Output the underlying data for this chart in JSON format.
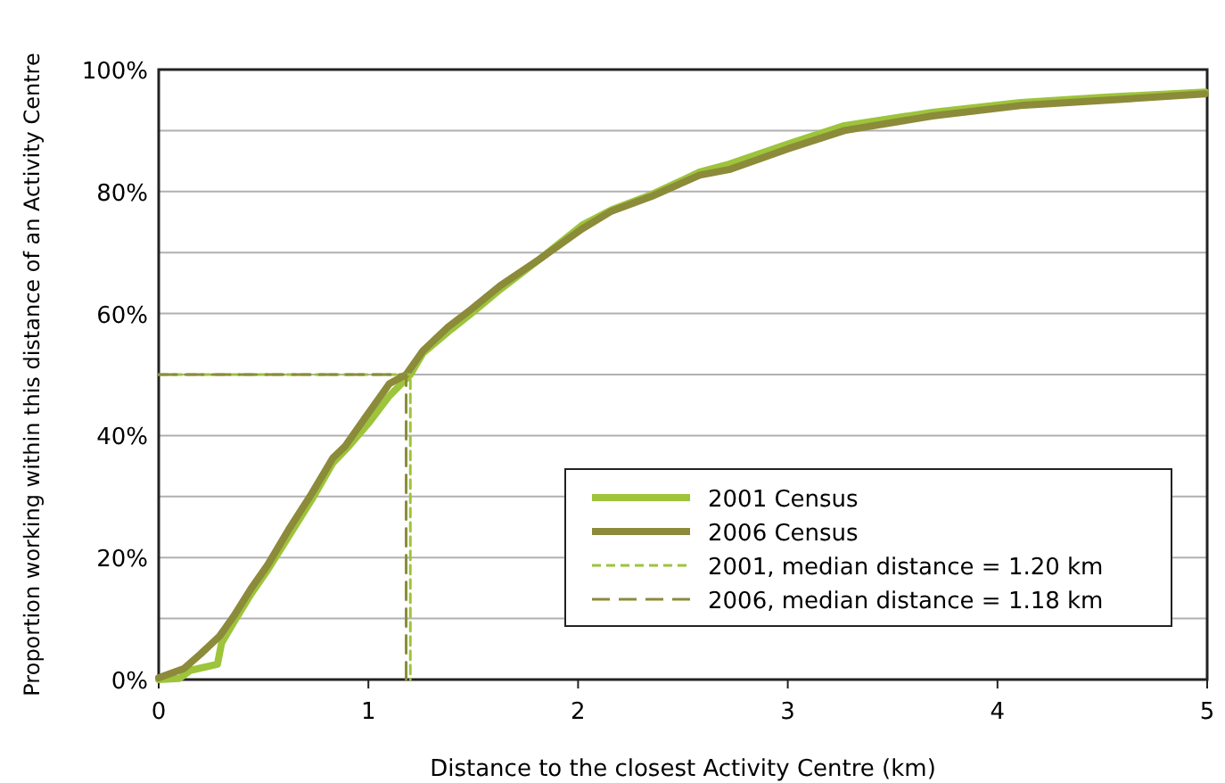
{
  "chart_data": {
    "type": "line",
    "xlabel": "Distance to the closest Activity Centre (km)",
    "ylabel": "Proportion working within this distance of an Activity Centre",
    "xlim": [
      0,
      5
    ],
    "xticks": [
      0,
      1,
      2,
      3,
      4,
      5
    ],
    "ylim": [
      0,
      100
    ],
    "yticks": [
      {
        "value": 0,
        "label": "0%"
      },
      {
        "value": 10,
        "label": null
      },
      {
        "value": 20,
        "label": "20%"
      },
      {
        "value": 30,
        "label": null
      },
      {
        "value": 40,
        "label": "40%"
      },
      {
        "value": 50,
        "label": null
      },
      {
        "value": 60,
        "label": "60%"
      },
      {
        "value": 70,
        "label": null
      },
      {
        "value": 80,
        "label": "80%"
      },
      {
        "value": 90,
        "label": null
      },
      {
        "value": 100,
        "label": "100%"
      }
    ],
    "grid": "y",
    "legend": "bottom right",
    "line_style": "solid",
    "marker": "none",
    "series": [
      {
        "name": "2001 Census",
        "color": "#9dc43b",
        "x": [
          0,
          0.1,
          0.15,
          0.28,
          0.3,
          0.36,
          0.44,
          0.52,
          0.62,
          0.73,
          0.83,
          0.9,
          1.0,
          1.1,
          1.2,
          1.26,
          1.38,
          1.49,
          1.63,
          1.82,
          2.02,
          2.16,
          2.35,
          2.58,
          2.72,
          3.0,
          3.27,
          3.69,
          4.11,
          4.53,
          4.99
        ],
        "values": [
          0,
          0.2,
          1.5,
          2.5,
          6,
          9.5,
          14,
          18,
          23.5,
          29.5,
          35.5,
          38,
          42,
          46.5,
          50,
          53.5,
          57,
          60,
          64,
          69,
          74.5,
          77,
          79.5,
          83.2,
          84.5,
          87.8,
          90.8,
          93,
          94.6,
          95.5,
          96.3
        ]
      },
      {
        "name": "2006 Census",
        "color": "#8b8b3a",
        "x": [
          0,
          0.12,
          0.2,
          0.29,
          0.36,
          0.44,
          0.52,
          0.62,
          0.73,
          0.83,
          0.89,
          0.99,
          1.1,
          1.18,
          1.26,
          1.38,
          1.49,
          1.63,
          1.82,
          2.02,
          2.16,
          2.35,
          2.58,
          2.72,
          3.0,
          3.27,
          3.69,
          4.11,
          4.53,
          4.99
        ],
        "values": [
          0.3,
          1.8,
          4.2,
          7.1,
          10.5,
          14.9,
          18.8,
          24.6,
          30.5,
          36.3,
          38.3,
          43.2,
          48.5,
          50,
          53.9,
          57.8,
          60.7,
          64.6,
          69,
          73.9,
          76.8,
          79.2,
          82.7,
          83.6,
          87,
          90,
          92.4,
          94.1,
          95,
          96
        ]
      },
      {
        "name": "2001, median distance = 1.20 km",
        "color": "#9dc43b",
        "line_style": "dashed",
        "x": [
          0,
          1.2,
          1.2
        ],
        "values": [
          50,
          50,
          0
        ]
      },
      {
        "name": "2006, median distance = 1.18 km",
        "color": "#8b8b3a",
        "line_style": "dashed",
        "x": [
          0,
          1.18,
          1.18
        ],
        "values": [
          50,
          50,
          0
        ]
      }
    ]
  }
}
